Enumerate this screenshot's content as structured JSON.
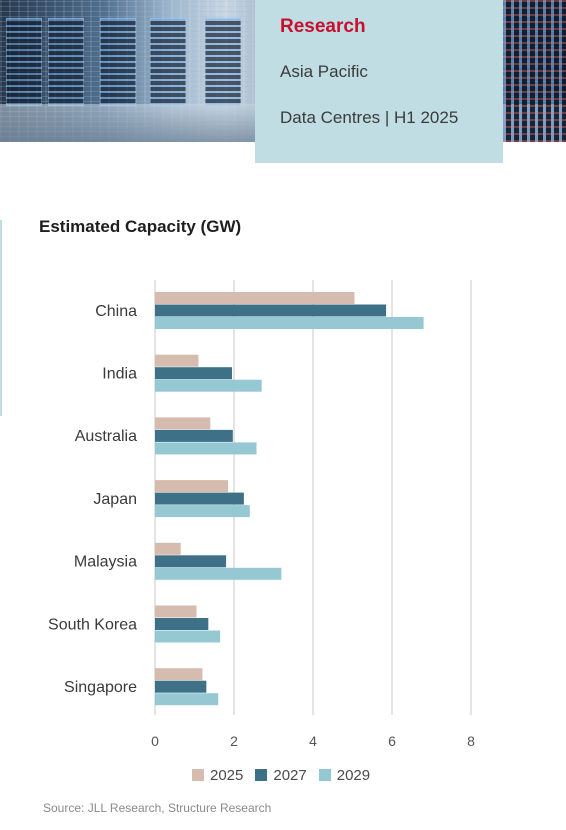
{
  "header": {
    "label": "Research",
    "region": "Asia Pacific",
    "report": "Data Centres | H1 2025"
  },
  "colors": {
    "accent_red": "#c8102e",
    "card": "#bfdde3",
    "grid": "#c9c9c9"
  },
  "chart_data": {
    "type": "bar",
    "orientation": "horizontal",
    "title": "Estimated Capacity (GW)",
    "categories": [
      "China",
      "India",
      "Australia",
      "Japan",
      "Malaysia",
      "South Korea",
      "Singapore"
    ],
    "series": [
      {
        "name": "2025",
        "color": "#d5bcae",
        "values": [
          5.05,
          1.1,
          1.4,
          1.85,
          0.65,
          1.05,
          1.2
        ]
      },
      {
        "name": "2027",
        "color": "#3e7188",
        "values": [
          5.85,
          1.95,
          1.97,
          2.25,
          1.8,
          1.35,
          1.3
        ]
      },
      {
        "name": "2029",
        "color": "#96c8d4",
        "values": [
          6.8,
          2.7,
          2.57,
          2.4,
          3.2,
          1.65,
          1.6
        ]
      }
    ],
    "xlim": [
      0,
      8
    ],
    "xticks": [
      "0",
      "2",
      "4",
      "6",
      "8"
    ],
    "grid": "vertical",
    "legend_position": "bottom"
  },
  "footer": {
    "source": "Source: JLL Research, Structure Research"
  }
}
